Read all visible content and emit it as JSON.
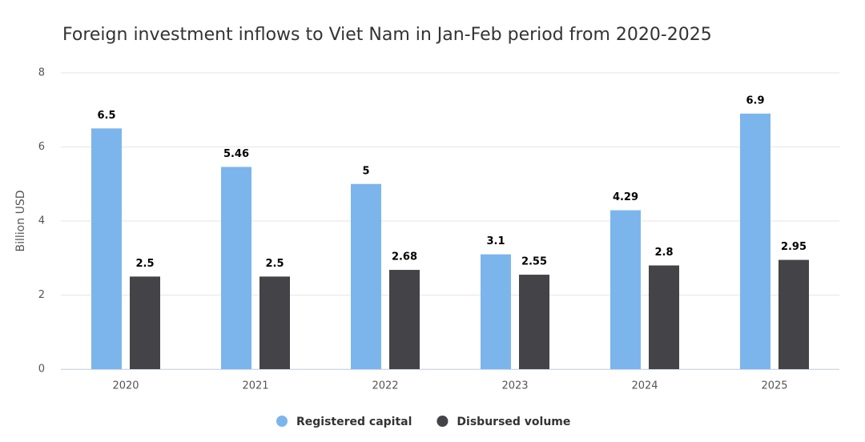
{
  "chart_data": {
    "type": "bar",
    "title": "Foreign investment inflows to Viet Nam in Jan-Feb period from 2020-2025",
    "y_label": "Billion USD",
    "categories": [
      "2020",
      "2021",
      "2022",
      "2023",
      "2024",
      "2025"
    ],
    "series": [
      {
        "name": "Registered capital",
        "color": "#7cb5ec",
        "values": [
          6.5,
          5.46,
          5,
          3.1,
          4.29,
          6.9
        ]
      },
      {
        "name": "Disbursed volume",
        "color": "#434348",
        "values": [
          2.5,
          2.5,
          2.68,
          2.55,
          2.8,
          2.95
        ]
      }
    ],
    "ylim": [
      0,
      8
    ],
    "yticks": [
      0,
      2,
      4,
      6,
      8
    ],
    "grid": true,
    "legend": "bottom"
  }
}
